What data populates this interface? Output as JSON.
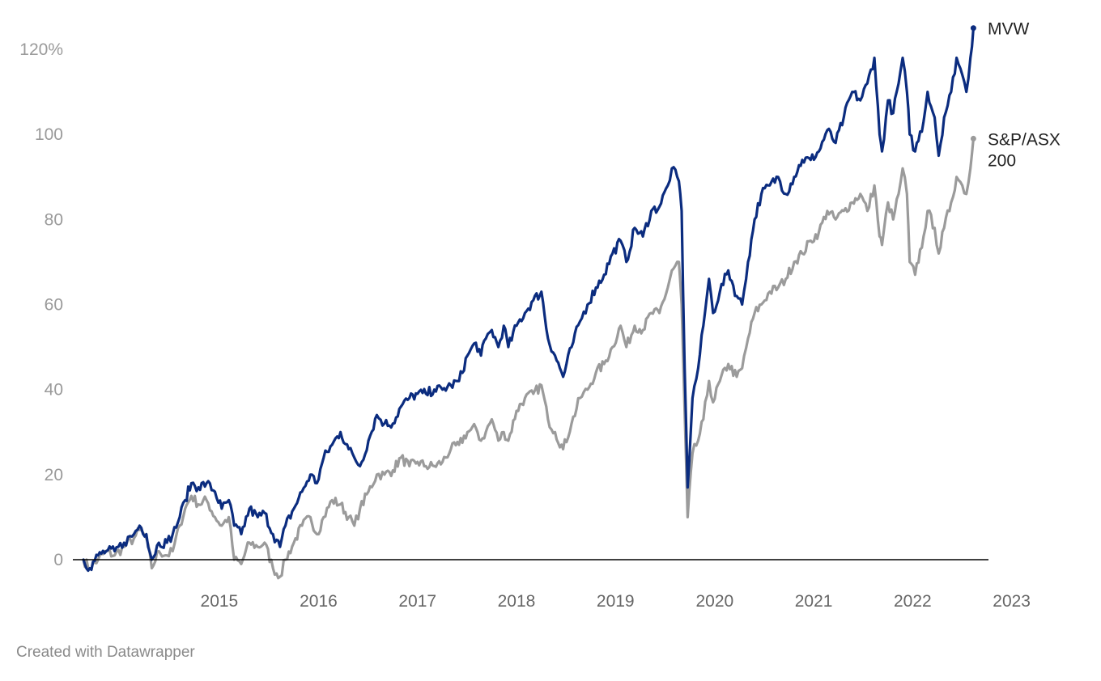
{
  "chart_data": {
    "type": "line",
    "title": "",
    "xlabel": "",
    "ylabel": "",
    "x_ticks": [
      "2015",
      "2016",
      "2017",
      "2018",
      "2019",
      "2020",
      "2021",
      "2022",
      "2023"
    ],
    "y_ticks": [
      0,
      20,
      40,
      60,
      80,
      100,
      120
    ],
    "y_tick_labels": [
      "0",
      "20",
      "40",
      "60",
      "80",
      "100",
      "120%"
    ],
    "xlim": [
      "2014-02",
      "2023-02"
    ],
    "ylim": [
      -5,
      125
    ],
    "grid": false,
    "legend": "direct labels at line ends (right)",
    "baseline": 0,
    "series": [
      {
        "name": "MVW",
        "color": "#0b2c7f",
        "points": [
          [
            "2014-02-15",
            0
          ],
          [
            "2014-03-10",
            -2
          ],
          [
            "2014-04-10",
            1
          ],
          [
            "2014-05-10",
            2
          ],
          [
            "2014-06-10",
            2
          ],
          [
            "2014-07-15",
            4
          ],
          [
            "2014-08-20",
            6
          ],
          [
            "2014-09-10",
            8
          ],
          [
            "2014-10-05",
            6
          ],
          [
            "2014-10-25",
            0
          ],
          [
            "2014-11-20",
            4
          ],
          [
            "2014-12-20",
            4
          ],
          [
            "2015-01-10",
            6
          ],
          [
            "2015-02-05",
            10
          ],
          [
            "2015-02-25",
            14
          ],
          [
            "2015-03-20",
            18
          ],
          [
            "2015-04-15",
            17
          ],
          [
            "2015-05-15",
            18
          ],
          [
            "2015-06-15",
            16
          ],
          [
            "2015-07-10",
            12
          ],
          [
            "2015-08-05",
            14
          ],
          [
            "2015-08-25",
            8
          ],
          [
            "2015-09-20",
            6
          ],
          [
            "2015-10-20",
            12
          ],
          [
            "2015-11-20",
            10
          ],
          [
            "2015-12-15",
            11
          ],
          [
            "2016-01-15",
            6
          ],
          [
            "2016-02-10",
            3
          ],
          [
            "2016-03-01",
            8
          ],
          [
            "2016-04-01",
            12
          ],
          [
            "2016-05-01",
            16
          ],
          [
            "2016-06-01",
            20
          ],
          [
            "2016-06-25",
            18
          ],
          [
            "2016-07-20",
            24
          ],
          [
            "2016-08-20",
            27
          ],
          [
            "2016-09-20",
            30
          ],
          [
            "2016-10-20",
            26
          ],
          [
            "2016-11-10",
            24
          ],
          [
            "2016-12-01",
            22
          ],
          [
            "2017-01-01",
            28
          ],
          [
            "2017-02-01",
            34
          ],
          [
            "2017-03-01",
            32
          ],
          [
            "2017-04-01",
            32
          ],
          [
            "2017-05-01",
            36
          ],
          [
            "2017-06-01",
            38
          ],
          [
            "2017-07-01",
            39
          ],
          [
            "2017-08-01",
            39
          ],
          [
            "2017-09-01",
            40
          ],
          [
            "2017-10-01",
            40
          ],
          [
            "2017-11-01",
            41
          ],
          [
            "2017-12-01",
            42
          ],
          [
            "2018-01-01",
            48
          ],
          [
            "2018-02-01",
            51
          ],
          [
            "2018-02-20",
            48
          ],
          [
            "2018-03-10",
            52
          ],
          [
            "2018-04-01",
            54
          ],
          [
            "2018-04-25",
            50
          ],
          [
            "2018-05-15",
            55
          ],
          [
            "2018-06-01",
            50
          ],
          [
            "2018-07-01",
            55
          ],
          [
            "2018-08-01",
            58
          ],
          [
            "2018-09-01",
            61
          ],
          [
            "2018-10-01",
            63
          ],
          [
            "2018-10-25",
            52
          ],
          [
            "2018-11-20",
            48
          ],
          [
            "2018-12-20",
            43
          ],
          [
            "2019-01-20",
            50
          ],
          [
            "2019-02-20",
            56
          ],
          [
            "2019-03-20",
            60
          ],
          [
            "2019-04-20",
            64
          ],
          [
            "2019-05-20",
            67
          ],
          [
            "2019-06-20",
            72
          ],
          [
            "2019-07-20",
            75
          ],
          [
            "2019-08-10",
            70
          ],
          [
            "2019-09-10",
            78
          ],
          [
            "2019-10-10",
            76
          ],
          [
            "2019-11-10",
            82
          ],
          [
            "2019-12-10",
            83
          ],
          [
            "2020-01-10",
            88
          ],
          [
            "2020-01-25",
            92
          ],
          [
            "2020-02-20",
            89
          ],
          [
            "2020-03-01",
            82
          ],
          [
            "2020-03-12",
            45
          ],
          [
            "2020-03-23",
            17
          ],
          [
            "2020-04-10",
            38
          ],
          [
            "2020-05-01",
            45
          ],
          [
            "2020-05-20",
            55
          ],
          [
            "2020-06-10",
            66
          ],
          [
            "2020-06-25",
            58
          ],
          [
            "2020-07-20",
            63
          ],
          [
            "2020-08-20",
            68
          ],
          [
            "2020-09-20",
            62
          ],
          [
            "2020-10-10",
            60
          ],
          [
            "2020-11-01",
            70
          ],
          [
            "2020-11-25",
            80
          ],
          [
            "2020-12-20",
            86
          ],
          [
            "2021-01-20",
            88
          ],
          [
            "2021-02-20",
            90
          ],
          [
            "2021-03-20",
            86
          ],
          [
            "2021-04-20",
            90
          ],
          [
            "2021-05-20",
            94
          ],
          [
            "2021-06-20",
            94
          ],
          [
            "2021-07-20",
            96
          ],
          [
            "2021-08-20",
            101
          ],
          [
            "2021-09-20",
            98
          ],
          [
            "2021-10-20",
            104
          ],
          [
            "2021-11-20",
            110
          ],
          [
            "2021-12-20",
            108
          ],
          [
            "2022-01-15",
            112
          ],
          [
            "2022-02-10",
            118
          ],
          [
            "2022-03-01",
            100
          ],
          [
            "2022-03-10",
            96
          ],
          [
            "2022-04-01",
            108
          ],
          [
            "2022-04-20",
            105
          ],
          [
            "2022-05-10",
            112
          ],
          [
            "2022-05-25",
            118
          ],
          [
            "2022-06-10",
            110
          ],
          [
            "2022-06-20",
            100
          ],
          [
            "2022-07-10",
            96
          ],
          [
            "2022-08-10",
            103
          ],
          [
            "2022-08-25",
            110
          ],
          [
            "2022-09-20",
            104
          ],
          [
            "2022-10-05",
            95
          ],
          [
            "2022-10-25",
            104
          ],
          [
            "2022-11-20",
            110
          ],
          [
            "2022-12-10",
            118
          ],
          [
            "2022-12-31",
            114
          ],
          [
            "2023-01-15",
            110
          ],
          [
            "2023-01-30",
            118
          ],
          [
            "2023-02-10",
            125
          ]
        ]
      },
      {
        "name": "S&P/ASX 200",
        "label_lines": [
          "S&P/ASX",
          "200"
        ],
        "color": "#9b9b9b",
        "points": [
          [
            "2014-02-15",
            0
          ],
          [
            "2014-03-10",
            -2
          ],
          [
            "2014-04-10",
            0
          ],
          [
            "2014-05-10",
            2
          ],
          [
            "2014-06-10",
            1
          ],
          [
            "2014-07-15",
            3
          ],
          [
            "2014-08-20",
            5
          ],
          [
            "2014-09-10",
            7
          ],
          [
            "2014-10-05",
            5
          ],
          [
            "2014-10-25",
            -2
          ],
          [
            "2014-11-20",
            2
          ],
          [
            "2014-12-20",
            1
          ],
          [
            "2015-01-10",
            2
          ],
          [
            "2015-02-05",
            8
          ],
          [
            "2015-02-25",
            12
          ],
          [
            "2015-03-20",
            15
          ],
          [
            "2015-04-15",
            13
          ],
          [
            "2015-05-15",
            14
          ],
          [
            "2015-06-15",
            10
          ],
          [
            "2015-07-10",
            8
          ],
          [
            "2015-08-05",
            10
          ],
          [
            "2015-08-25",
            0
          ],
          [
            "2015-09-20",
            -1
          ],
          [
            "2015-10-20",
            4
          ],
          [
            "2015-11-20",
            3
          ],
          [
            "2015-12-15",
            4
          ],
          [
            "2016-01-15",
            -2
          ],
          [
            "2016-02-10",
            -4
          ],
          [
            "2016-03-01",
            0
          ],
          [
            "2016-04-01",
            4
          ],
          [
            "2016-05-01",
            8
          ],
          [
            "2016-06-01",
            10
          ],
          [
            "2016-06-25",
            6
          ],
          [
            "2016-07-20",
            10
          ],
          [
            "2016-08-20",
            14
          ],
          [
            "2016-09-20",
            13
          ],
          [
            "2016-10-20",
            10
          ],
          [
            "2016-11-10",
            8
          ],
          [
            "2016-12-01",
            12
          ],
          [
            "2017-01-01",
            16
          ],
          [
            "2017-02-01",
            20
          ],
          [
            "2017-03-01",
            20
          ],
          [
            "2017-04-01",
            21
          ],
          [
            "2017-05-01",
            24
          ],
          [
            "2017-06-01",
            22
          ],
          [
            "2017-07-01",
            23
          ],
          [
            "2017-08-01",
            22
          ],
          [
            "2017-09-01",
            22
          ],
          [
            "2017-10-01",
            23
          ],
          [
            "2017-11-01",
            26
          ],
          [
            "2017-12-01",
            27
          ],
          [
            "2018-01-01",
            30
          ],
          [
            "2018-02-01",
            31
          ],
          [
            "2018-02-20",
            28
          ],
          [
            "2018-03-10",
            30
          ],
          [
            "2018-04-01",
            33
          ],
          [
            "2018-04-25",
            28
          ],
          [
            "2018-05-15",
            30
          ],
          [
            "2018-06-01",
            28
          ],
          [
            "2018-07-01",
            35
          ],
          [
            "2018-08-01",
            38
          ],
          [
            "2018-09-01",
            39
          ],
          [
            "2018-10-01",
            41
          ],
          [
            "2018-10-25",
            33
          ],
          [
            "2018-11-20",
            30
          ],
          [
            "2018-12-20",
            26
          ],
          [
            "2019-01-20",
            32
          ],
          [
            "2019-02-20",
            38
          ],
          [
            "2019-03-20",
            40
          ],
          [
            "2019-04-20",
            44
          ],
          [
            "2019-05-20",
            46
          ],
          [
            "2019-06-20",
            50
          ],
          [
            "2019-07-20",
            55
          ],
          [
            "2019-08-10",
            50
          ],
          [
            "2019-09-10",
            55
          ],
          [
            "2019-10-10",
            54
          ],
          [
            "2019-11-10",
            58
          ],
          [
            "2019-12-10",
            58
          ],
          [
            "2020-01-10",
            64
          ],
          [
            "2020-01-25",
            68
          ],
          [
            "2020-02-20",
            70
          ],
          [
            "2020-03-01",
            60
          ],
          [
            "2020-03-12",
            35
          ],
          [
            "2020-03-23",
            10
          ],
          [
            "2020-04-10",
            25
          ],
          [
            "2020-05-01",
            28
          ],
          [
            "2020-05-20",
            33
          ],
          [
            "2020-06-10",
            42
          ],
          [
            "2020-06-25",
            37
          ],
          [
            "2020-07-20",
            42
          ],
          [
            "2020-08-20",
            46
          ],
          [
            "2020-09-20",
            43
          ],
          [
            "2020-10-10",
            45
          ],
          [
            "2020-11-01",
            52
          ],
          [
            "2020-11-25",
            58
          ],
          [
            "2020-12-20",
            60
          ],
          [
            "2021-01-20",
            63
          ],
          [
            "2021-02-20",
            64
          ],
          [
            "2021-03-20",
            66
          ],
          [
            "2021-04-20",
            70
          ],
          [
            "2021-05-20",
            72
          ],
          [
            "2021-06-20",
            75
          ],
          [
            "2021-07-20",
            77
          ],
          [
            "2021-08-20",
            82
          ],
          [
            "2021-09-20",
            80
          ],
          [
            "2021-10-20",
            82
          ],
          [
            "2021-11-20",
            84
          ],
          [
            "2021-12-20",
            86
          ],
          [
            "2022-01-15",
            82
          ],
          [
            "2022-02-10",
            88
          ],
          [
            "2022-03-01",
            76
          ],
          [
            "2022-03-10",
            74
          ],
          [
            "2022-04-01",
            84
          ],
          [
            "2022-04-20",
            80
          ],
          [
            "2022-05-10",
            86
          ],
          [
            "2022-05-25",
            92
          ],
          [
            "2022-06-10",
            86
          ],
          [
            "2022-06-20",
            70
          ],
          [
            "2022-07-10",
            67
          ],
          [
            "2022-08-10",
            76
          ],
          [
            "2022-08-25",
            82
          ],
          [
            "2022-09-20",
            78
          ],
          [
            "2022-10-05",
            72
          ],
          [
            "2022-10-25",
            78
          ],
          [
            "2022-11-20",
            84
          ],
          [
            "2022-12-10",
            90
          ],
          [
            "2022-12-31",
            88
          ],
          [
            "2023-01-15",
            86
          ],
          [
            "2023-01-30",
            92
          ],
          [
            "2023-02-10",
            99
          ]
        ]
      }
    ]
  },
  "credit": "Created with Datawrapper"
}
